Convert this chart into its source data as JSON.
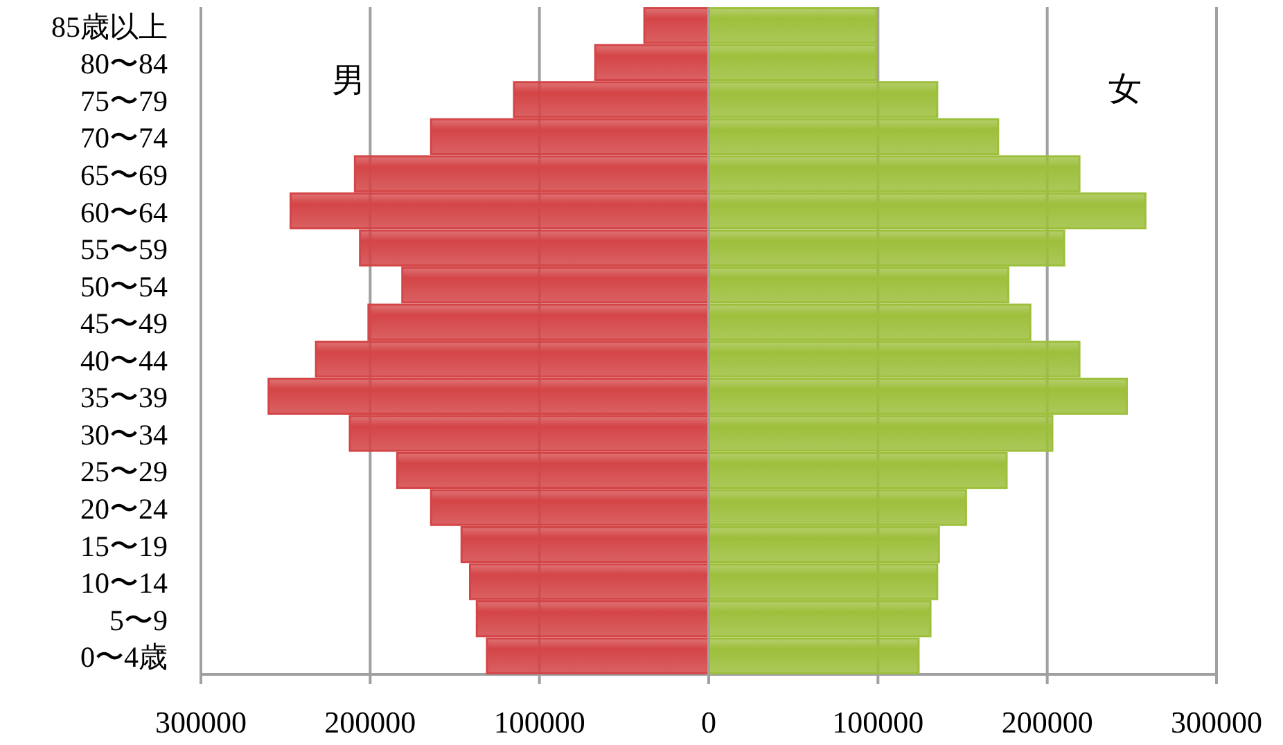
{
  "chart_data": {
    "type": "bar",
    "orientation": "horizontal",
    "stacked": true,
    "categories": [
      "85歳以上",
      "80〜84",
      "75〜79",
      "70〜74",
      "65〜69",
      "60〜64",
      "55〜59",
      "50〜54",
      "45〜49",
      "40〜44",
      "35〜39",
      "30〜34",
      "25〜29",
      "20〜24",
      "15〜19",
      "10〜14",
      "5〜9",
      "0〜4歳"
    ],
    "series": [
      {
        "name": "男",
        "color": "#d44547",
        "values": [
          -38000,
          -67000,
          -115000,
          -164000,
          -209000,
          -247000,
          -206000,
          -181000,
          -201000,
          -232000,
          -260000,
          -212000,
          -184000,
          -164000,
          -146000,
          -141000,
          -137000,
          -131000
        ]
      },
      {
        "name": "女",
        "color": "#9dbf3c",
        "values": [
          99000,
          99000,
          135000,
          171000,
          219000,
          258000,
          210000,
          177000,
          190000,
          219000,
          247000,
          203000,
          176000,
          152000,
          136000,
          135000,
          131000,
          124000
        ]
      }
    ],
    "xlim": [
      -300000,
      300000
    ],
    "xticks": [
      {
        "value": -300000,
        "label": "300000"
      },
      {
        "value": -200000,
        "label": "200000"
      },
      {
        "value": -100000,
        "label": "100000"
      },
      0,
      100000,
      200000,
      300000
    ],
    "grid": "x"
  }
}
